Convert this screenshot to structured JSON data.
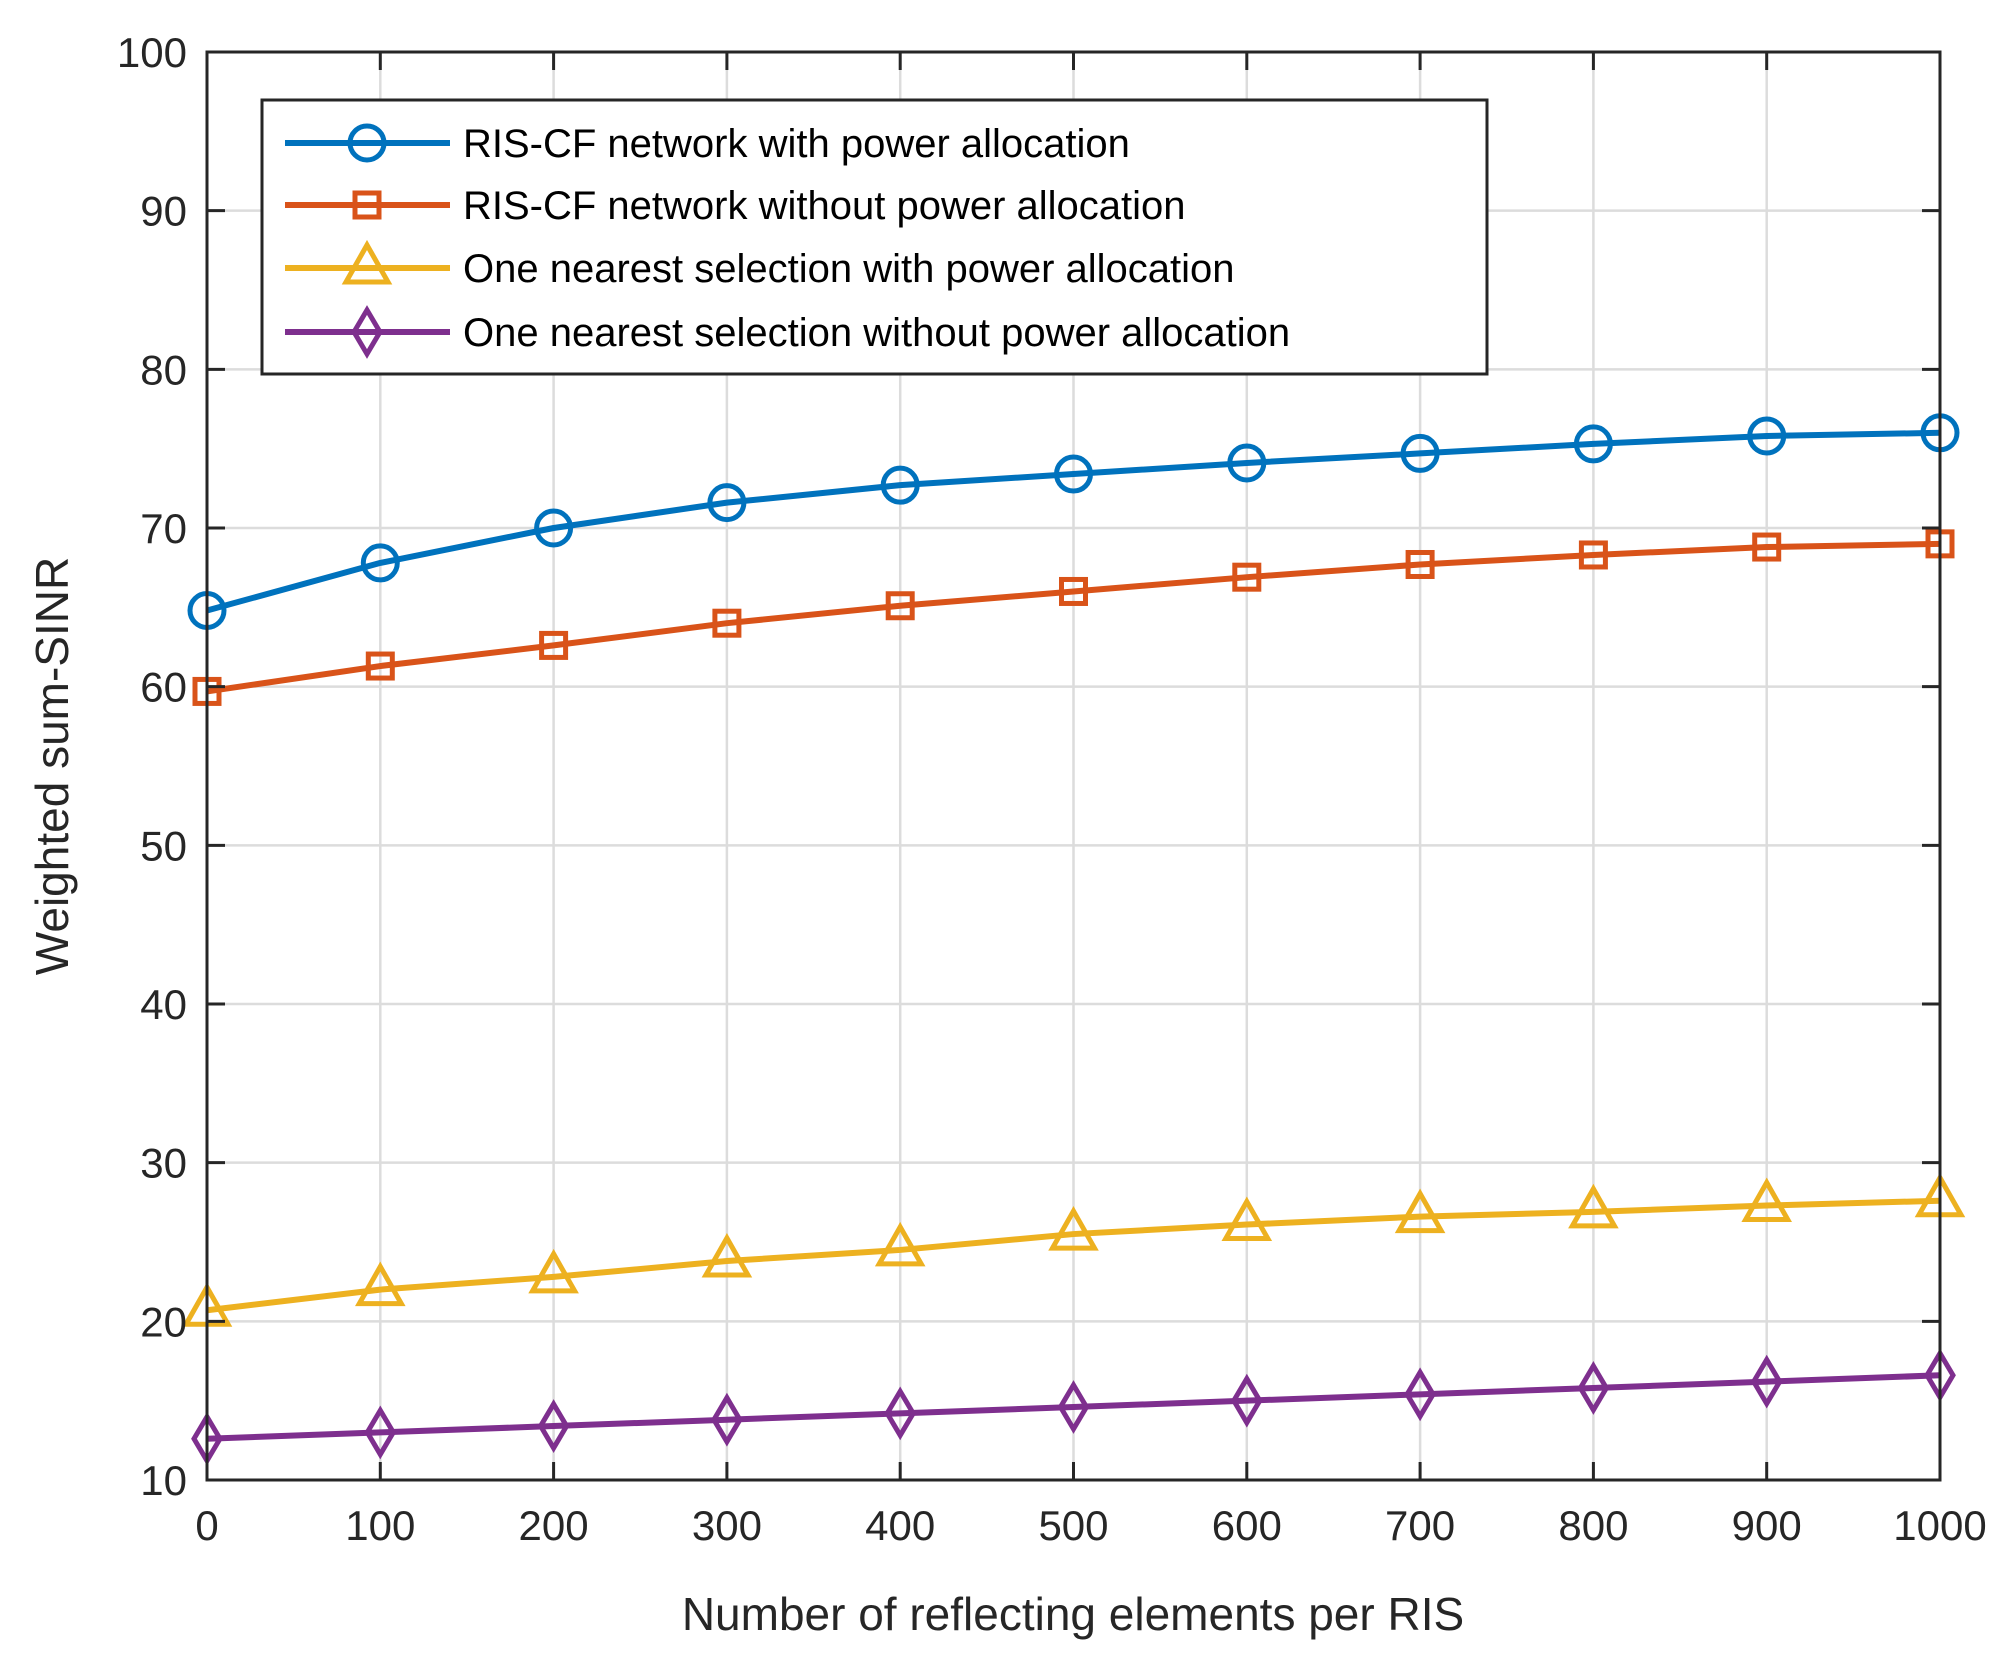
{
  "chart_data": {
    "type": "line",
    "title": "",
    "xlabel": "Number of reflecting elements per RIS",
    "ylabel": "Weighted sum-SINR",
    "xlim": [
      0,
      1000
    ],
    "ylim": [
      10,
      100
    ],
    "xticks": [
      0,
      100,
      200,
      300,
      400,
      500,
      600,
      700,
      800,
      900,
      1000
    ],
    "yticks": [
      10,
      20,
      30,
      40,
      50,
      60,
      70,
      80,
      90,
      100
    ],
    "grid": true,
    "legend_position": "top-left",
    "x": [
      0,
      100,
      200,
      300,
      400,
      500,
      600,
      700,
      800,
      900,
      1000
    ],
    "series": [
      {
        "name": "RIS-CF network with power allocation",
        "color": "#0072BD",
        "marker": "circle",
        "values": [
          64.8,
          67.8,
          70.0,
          71.6,
          72.7,
          73.4,
          74.1,
          74.7,
          75.3,
          75.8,
          76.0
        ]
      },
      {
        "name": "RIS-CF network without power allocation",
        "color": "#D95319",
        "marker": "square",
        "values": [
          59.7,
          61.3,
          62.6,
          64.0,
          65.1,
          66.0,
          66.9,
          67.7,
          68.3,
          68.8,
          69.0
        ]
      },
      {
        "name": "One nearest selection with power allocation",
        "color": "#EDB120",
        "marker": "triangle",
        "values": [
          20.7,
          22.0,
          22.8,
          23.8,
          24.5,
          25.5,
          26.1,
          26.6,
          26.9,
          27.3,
          27.6
        ]
      },
      {
        "name": "One nearest selection without power allocation",
        "color": "#7E2F8E",
        "marker": "diamond",
        "values": [
          12.6,
          13.0,
          13.4,
          13.8,
          14.2,
          14.6,
          15.0,
          15.4,
          15.8,
          16.2,
          16.6
        ]
      }
    ]
  }
}
